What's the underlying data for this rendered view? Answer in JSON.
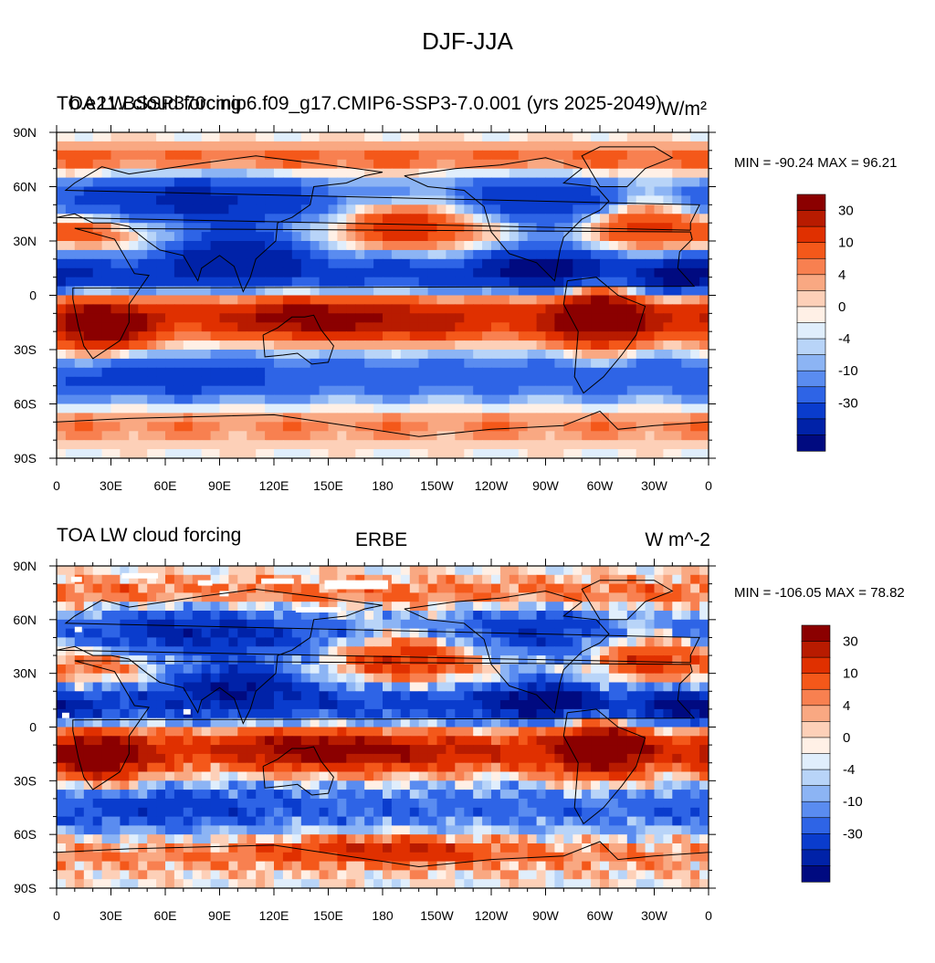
{
  "main_title": "DJF-JJA",
  "panels": [
    {
      "left_title": "TOA LW cloud forcing",
      "center_title": "b.e21.BSSP370cmip6.f09_g17.CMIP6-SSP3-7.0.001 (yrs 2025-2049)",
      "units": "W/m²",
      "min_max": "MIN = -90.24 MAX =  96.21"
    },
    {
      "left_title": "TOA LW cloud forcing",
      "center_title": "ERBE",
      "units": "W m^-2",
      "min_max": "MIN = -106.05 MAX =  78.82"
    }
  ],
  "x_tick_labels": [
    "0",
    "30E",
    "60E",
    "90E",
    "120E",
    "150E",
    "180",
    "150W",
    "120W",
    "90W",
    "60W",
    "30W",
    "0"
  ],
  "y_tick_labels": [
    "90N",
    "60N",
    "30N",
    "0",
    "30S",
    "60S",
    "90S"
  ],
  "colorbar_labels": [
    "30",
    "10",
    "4",
    "0",
    "-4",
    "-10",
    "-30"
  ],
  "colors": {
    "levels": [
      "#8b0000",
      "#b81b00",
      "#e03000",
      "#f4581a",
      "#f88050",
      "#f9a882",
      "#fdd0b8",
      "#fff0e6",
      "#e0eefc",
      "#b8d4f8",
      "#8cb4f4",
      "#5a8cf0",
      "#2e64e6",
      "#0a3ccd",
      "#0022a8",
      "#000a80"
    ]
  },
  "chart_data": [
    {
      "type": "heatmap",
      "title": "DJF-JJA",
      "subtitle": "b.e21.BSSP370cmip6.f09_g17.CMIP6-SSP3-7.0.001 (yrs 2025-2049)",
      "variable": "TOA LW cloud forcing",
      "units": "W/m²",
      "min": -90.24,
      "max": 96.21,
      "xlim": [
        0,
        360
      ],
      "ylim": [
        -90,
        90
      ],
      "contour_levels": [
        -50,
        -40,
        -30,
        -20,
        -15,
        -10,
        -6,
        -4,
        -2,
        0,
        2,
        4,
        6,
        10,
        15,
        20,
        30,
        40,
        50
      ]
    },
    {
      "type": "heatmap",
      "title": "DJF-JJA",
      "subtitle": "ERBE",
      "variable": "TOA LW cloud forcing",
      "units": "W m^-2",
      "min": -106.05,
      "max": 78.82,
      "xlim": [
        0,
        360
      ],
      "ylim": [
        -90,
        90
      ],
      "contour_levels": [
        -50,
        -40,
        -30,
        -20,
        -15,
        -10,
        -6,
        -4,
        -2,
        0,
        2,
        4,
        6,
        10,
        15,
        20,
        30,
        40,
        50
      ]
    }
  ]
}
